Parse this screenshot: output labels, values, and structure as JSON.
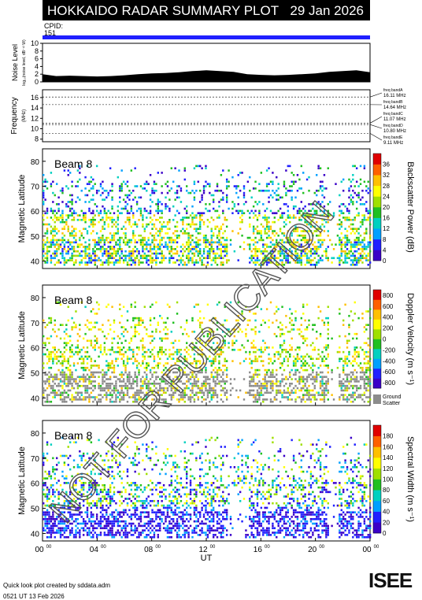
{
  "header": {
    "title": "HOKKAIDO RADAR SUMMARY PLOT",
    "date": "29 Jan 2026"
  },
  "cpid": {
    "label": "CPID:",
    "value": "151"
  },
  "watermark": "NOT FOR PUBLICATION",
  "footer": {
    "credit": "Quick look plot created by sddata.adm",
    "timestamp": "0521 UT 13 Feb 2026",
    "logo_text": "ISEE"
  },
  "colors": {
    "cpid_bar": "#1f1fff",
    "ground_scatter": "#8c8c8c",
    "accent": "#2aa14a"
  },
  "chart_data": [
    {
      "type": "area",
      "panel": "noise",
      "ylabel": "Noise Level",
      "ylabel_sub": "log₁₀(noise level, dB⁻¹² W)",
      "ylim": [
        0,
        10
      ],
      "yticks": [
        "0",
        "2",
        "4",
        "6",
        "8",
        "10"
      ],
      "x": [
        0,
        1,
        2,
        3,
        4,
        5,
        6,
        7,
        8,
        9,
        10,
        11,
        12,
        13,
        14,
        15,
        16,
        17,
        18,
        19,
        20,
        21,
        22,
        23,
        24
      ],
      "values": [
        2.0,
        1.5,
        1.6,
        1.5,
        1.4,
        1.5,
        1.7,
        2.0,
        2.2,
        2.3,
        2.5,
        2.8,
        3.0,
        2.8,
        2.6,
        2.0,
        1.8,
        1.7,
        1.8,
        2.0,
        2.2,
        2.6,
        2.8,
        3.0,
        2.5
      ]
    },
    {
      "type": "line",
      "panel": "frequency",
      "ylabel": "Frequency",
      "unit": "(MHz)",
      "ylim": [
        7.5,
        17.5
      ],
      "yticks": [
        "8",
        "10",
        "12",
        "14",
        "16"
      ],
      "bands": [
        {
          "label": "freq bandA",
          "mhz": 16.11,
          "text": "16.11 MHz"
        },
        {
          "label": "freq bandB",
          "mhz": 14.64,
          "text": "14.64 MHz"
        },
        {
          "label": "freq bandC",
          "mhz": 11.07,
          "text": "11.07 MHz"
        },
        {
          "label": "freq bandD",
          "mhz": 10.8,
          "text": "10.80 MHz"
        },
        {
          "label": "freq bandE",
          "mhz": 9.11,
          "text": "9.11 MHz"
        }
      ]
    },
    {
      "type": "heatmap",
      "panel": "power",
      "beam": "Beam 8",
      "ylabel": "Magnetic Latitude",
      "ylim": [
        37,
        85
      ],
      "yticks": [
        "40",
        "50",
        "60",
        "70",
        "80"
      ],
      "colorbar_label": "Backscatter Power (dB)",
      "colorbar_ticks": [
        "0",
        "4",
        "8",
        "12",
        "16",
        "20",
        "24",
        "28",
        "32",
        "36"
      ],
      "colorbar_colors": [
        "#3a00c8",
        "#2020ff",
        "#00a0ff",
        "#00d0c0",
        "#20c020",
        "#a0e000",
        "#ffff00",
        "#ffc000",
        "#ff6000",
        "#e00000"
      ]
    },
    {
      "type": "heatmap",
      "panel": "velocity",
      "beam": "Beam 8",
      "ylabel": "Magnetic Latitude",
      "ylim": [
        37,
        85
      ],
      "yticks": [
        "40",
        "50",
        "60",
        "70",
        "80"
      ],
      "colorbar_label": "Doppler Velocity (m s⁻¹)",
      "colorbar_ticks": [
        "800",
        "600",
        "400",
        "200",
        "0",
        "-200",
        "-400",
        "-600",
        "-800"
      ],
      "colorbar_colors": [
        "#3a00c8",
        "#2020ff",
        "#00a0ff",
        "#00d0c0",
        "#20c020",
        "#a0e000",
        "#ffff00",
        "#ffc000",
        "#ff6000",
        "#e00000"
      ],
      "ground_label": "Ground Scatter"
    },
    {
      "type": "heatmap",
      "panel": "width",
      "beam": "Beam 8",
      "ylabel": "Magnetic Latitude",
      "ylim": [
        37,
        85
      ],
      "yticks": [
        "40",
        "50",
        "60",
        "70",
        "80"
      ],
      "colorbar_label": "Spectral Width (m s⁻¹)",
      "colorbar_ticks": [
        "0",
        "20",
        "40",
        "60",
        "80",
        "100",
        "120",
        "140",
        "160",
        "180"
      ],
      "colorbar_colors": [
        "#3a00c8",
        "#2020ff",
        "#00a0ff",
        "#00d0c0",
        "#20c020",
        "#a0e000",
        "#ffff00",
        "#ffc000",
        "#ff6000",
        "#e00000"
      ]
    }
  ],
  "xaxis": {
    "label": "UT",
    "ticks": [
      "00",
      "04",
      "08",
      "12",
      "16",
      "20",
      "00"
    ],
    "tick_sup": "00",
    "range_hours": [
      0,
      24
    ]
  }
}
